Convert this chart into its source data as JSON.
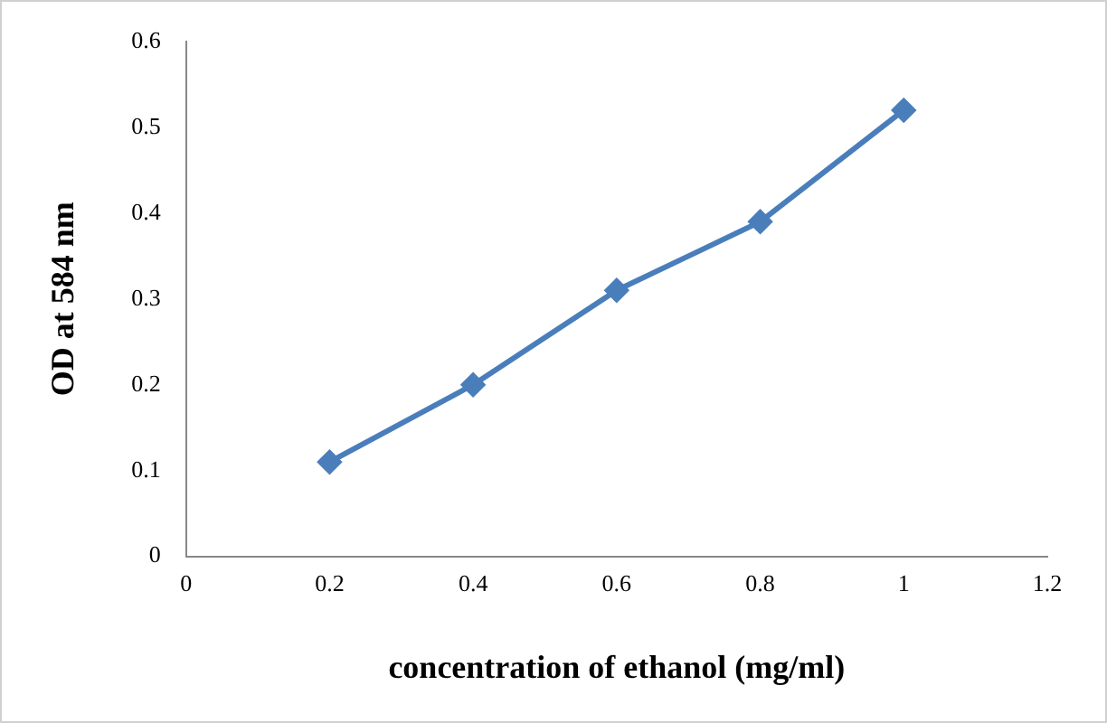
{
  "chart_data": {
    "type": "line",
    "xlabel": "concentration of ethanol (mg/ml)",
    "ylabel": "OD at 584 nm",
    "x": [
      0.2,
      0.4,
      0.6,
      0.8,
      1
    ],
    "series": [
      {
        "color": "#4a7ebb",
        "values": [
          0.11,
          0.2,
          0.31,
          0.39,
          0.52
        ]
      }
    ],
    "xlim": [
      0,
      1.2
    ],
    "xticks": [
      0,
      0.2,
      0.4,
      0.6,
      0.8,
      1,
      1.2
    ],
    "ylim": [
      0,
      0.6
    ],
    "yticks": [
      0,
      0.1,
      0.2,
      0.3,
      0.4,
      0.5,
      0.6
    ],
    "grid": false,
    "legend": false,
    "marker": "diamond",
    "line_style": "solid"
  }
}
